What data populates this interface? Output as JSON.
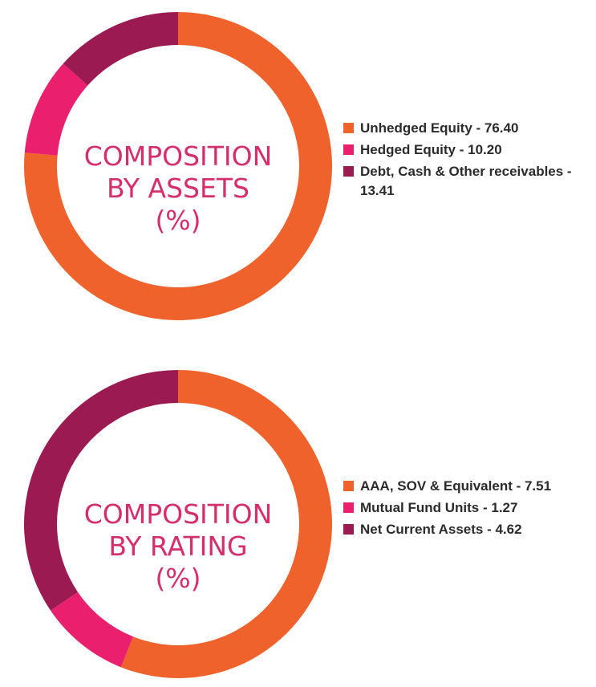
{
  "chart_data": [
    {
      "type": "pie",
      "title_lines": [
        "COMPOSITION",
        "BY ASSETS",
        "(%)"
      ],
      "slices": [
        {
          "label": "Unhedged Equity - 76.40",
          "value": 76.4,
          "color": "#f0622c"
        },
        {
          "label": "Hedged Equity - 10.20",
          "value": 10.2,
          "color": "#ea1f6d"
        },
        {
          "label": "Debt, Cash & Other receivables - 13.41",
          "value": 13.41,
          "color": "#9c1a52"
        }
      ],
      "legend_position": "right"
    },
    {
      "type": "pie",
      "title_lines": [
        "COMPOSITION",
        "BY RATING",
        "(%)"
      ],
      "slices": [
        {
          "label": "AAA, SOV & Equivalent - 7.51",
          "value": 7.51,
          "color": "#f0622c"
        },
        {
          "label": "Mutual Fund Units - 1.27",
          "value": 1.27,
          "color": "#ea1f6d"
        },
        {
          "label": "Net Current Assets - 4.62",
          "value": 4.62,
          "color": "#9c1a52"
        }
      ],
      "legend_position": "right"
    }
  ]
}
